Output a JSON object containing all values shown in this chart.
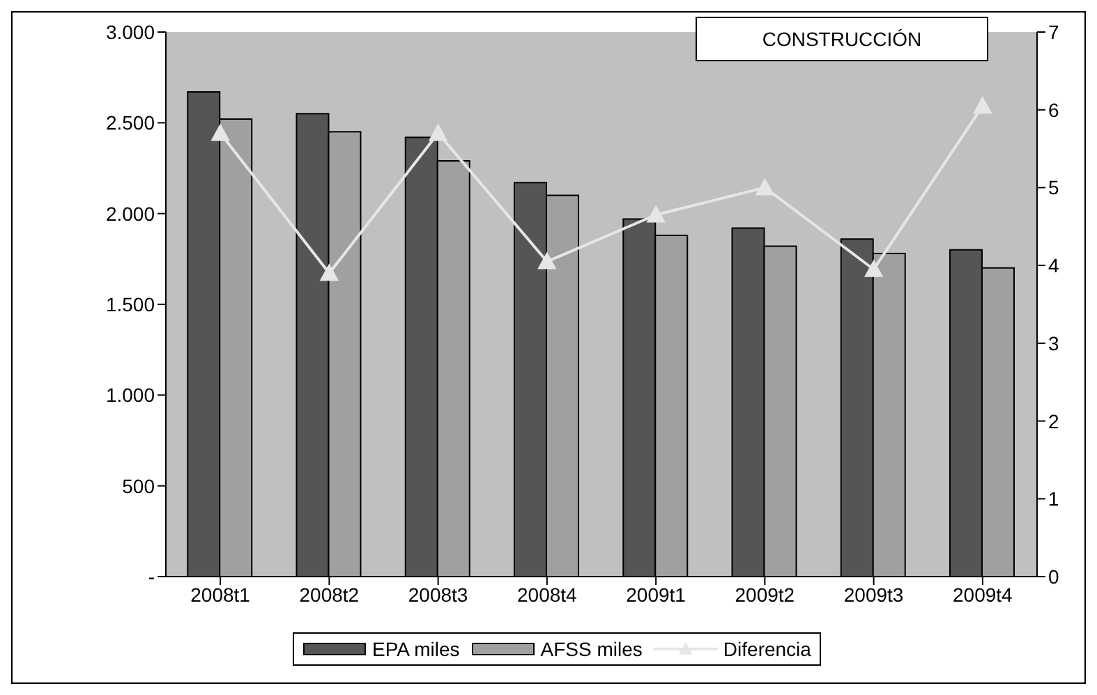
{
  "chart_data": {
    "type": "bar",
    "title": "CONSTRUCCIÓN",
    "categories": [
      "2008t1",
      "2008t2",
      "2008t3",
      "2008t4",
      "2009t1",
      "2009t2",
      "2009t3",
      "2009t4"
    ],
    "series": [
      {
        "name": "EPA miles",
        "color": "#555555",
        "values": [
          2670,
          2550,
          2420,
          2170,
          1970,
          1920,
          1860,
          1800
        ]
      },
      {
        "name": "AFSS miles",
        "color": "#a0a0a0",
        "values": [
          2520,
          2450,
          2290,
          2100,
          1880,
          1820,
          1780,
          1700
        ]
      },
      {
        "name": "Diferencia",
        "type": "line",
        "axis": "y2",
        "color": "#e6e6e6",
        "marker": "triangle",
        "values": [
          5.7,
          3.9,
          5.7,
          4.05,
          4.65,
          5.0,
          3.95,
          6.05
        ]
      }
    ],
    "ylim": [
      0,
      3000
    ],
    "yticks": [
      {
        "value": 0,
        "label": "-"
      },
      500,
      {
        "value": 1000,
        "label": "1.000"
      },
      {
        "value": 1500,
        "label": "1.500"
      },
      {
        "value": 2000,
        "label": "2.000"
      },
      {
        "value": 2500,
        "label": "2.500"
      },
      {
        "value": 3000,
        "label": "3.000"
      }
    ],
    "y2lim": [
      0,
      7
    ],
    "y2ticks": [
      0,
      1,
      2,
      3,
      4,
      5,
      6,
      7
    ],
    "legend": "bottom"
  }
}
